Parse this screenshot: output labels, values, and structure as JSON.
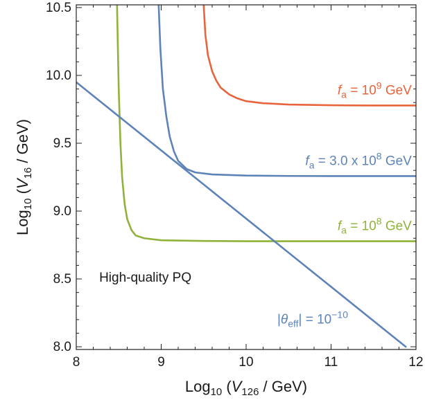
{
  "chart_data": {
    "type": "line",
    "title": "",
    "xlabel": "Log10 (V126 / GeV)",
    "ylabel": "Log10 (V16 / GeV)",
    "xlim": [
      8.0,
      12.0
    ],
    "ylim": [
      7.98,
      10.52
    ],
    "x_ticks": [
      8,
      9,
      10,
      11,
      12
    ],
    "x_tick_labels": [
      "8",
      "9",
      "10",
      "11",
      "12"
    ],
    "y_ticks": [
      8.0,
      8.5,
      9.0,
      9.5,
      10.0,
      10.5
    ],
    "y_tick_labels": [
      "8.0",
      "8.5",
      "9.0",
      "9.5",
      "10.0",
      "10.5"
    ],
    "grid": false,
    "series": [
      {
        "name": "fa = 10^9 GeV",
        "color": "#e8643c",
        "points": [
          [
            9.5,
            10.52
          ],
          [
            9.52,
            10.3
          ],
          [
            9.55,
            10.15
          ],
          [
            9.6,
            10.03
          ],
          [
            9.65,
            9.96
          ],
          [
            9.7,
            9.91
          ],
          [
            9.8,
            9.86
          ],
          [
            9.9,
            9.83
          ],
          [
            10.0,
            9.81
          ],
          [
            10.2,
            9.795
          ],
          [
            10.5,
            9.785
          ],
          [
            11.0,
            9.78
          ],
          [
            11.5,
            9.778
          ],
          [
            12.0,
            9.778
          ]
        ]
      },
      {
        "name": "fa = 3.0 x 10^8 GeV",
        "color": "#5d83b8",
        "points": [
          [
            8.97,
            10.52
          ],
          [
            8.99,
            10.2
          ],
          [
            9.02,
            9.9
          ],
          [
            9.06,
            9.7
          ],
          [
            9.1,
            9.55
          ],
          [
            9.15,
            9.44
          ],
          [
            9.2,
            9.37
          ],
          [
            9.3,
            9.31
          ],
          [
            9.4,
            9.285
          ],
          [
            9.6,
            9.27
          ],
          [
            10.0,
            9.262
          ],
          [
            10.5,
            9.259
          ],
          [
            11.0,
            9.258
          ],
          [
            12.0,
            9.258
          ]
        ]
      },
      {
        "name": "fa = 10^8 GeV",
        "color": "#8fb23a",
        "points": [
          [
            8.48,
            10.52
          ],
          [
            8.49,
            10.2
          ],
          [
            8.5,
            9.9
          ],
          [
            8.52,
            9.5
          ],
          [
            8.54,
            9.25
          ],
          [
            8.57,
            9.05
          ],
          [
            8.6,
            8.94
          ],
          [
            8.65,
            8.86
          ],
          [
            8.7,
            8.82
          ],
          [
            8.8,
            8.8
          ],
          [
            9.0,
            8.785
          ],
          [
            9.5,
            8.78
          ],
          [
            10.0,
            8.778
          ],
          [
            11.0,
            8.778
          ],
          [
            12.0,
            8.778
          ]
        ]
      },
      {
        "name": "|θeff| = 10^-10",
        "color": "#5d83b8",
        "points": [
          [
            8.0,
            9.95
          ],
          [
            11.88,
            8.0
          ]
        ]
      }
    ],
    "annotations": [
      {
        "id": "fa9",
        "base": "f",
        "sub": "a",
        "mid": " = 10",
        "sup": "9",
        "tail": " GeV",
        "color": "#e8643c",
        "x": 11.95,
        "y": 9.86,
        "anchor": "end"
      },
      {
        "id": "fa3",
        "base": "f",
        "sub": "a",
        "mid": " = 3.0 x 10",
        "sup": "8",
        "tail": " GeV",
        "color": "#5d83b8",
        "x": 11.95,
        "y": 9.34,
        "anchor": "end"
      },
      {
        "id": "fa8",
        "base": "f",
        "sub": "a",
        "mid": " = 10",
        "sup": "8",
        "tail": " GeV",
        "color": "#8fb23a",
        "x": 11.95,
        "y": 8.86,
        "anchor": "end"
      },
      {
        "id": "theta",
        "pre": "|",
        "base": "θ",
        "sub": "eff",
        "mid": "| = 10",
        "sup": "−10",
        "tail": "",
        "color": "#5d83b8",
        "x": 11.2,
        "y": 8.17,
        "anchor": "end"
      },
      {
        "id": "hq",
        "text": "High-quality PQ",
        "color": "#1a1a1a",
        "x": 8.27,
        "y": 8.48,
        "anchor": "start"
      }
    ]
  }
}
